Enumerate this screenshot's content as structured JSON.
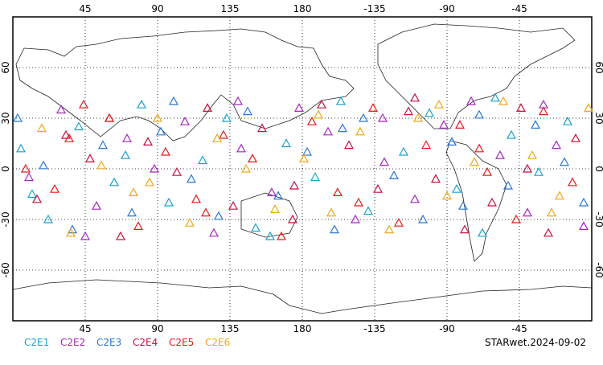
{
  "chart_data": {
    "type": "scatter",
    "xlim": [
      0,
      360
    ],
    "ylim": [
      -90,
      90
    ],
    "xticks": [
      45,
      90,
      135,
      180,
      {
        "value": 225,
        "label": "-135"
      },
      {
        "value": 270,
        "label": "-90"
      },
      {
        "value": 315,
        "label": "-45"
      }
    ],
    "yticks": [
      -60,
      -30,
      0,
      30,
      60
    ],
    "grid": true,
    "stamp": "STARwet.2024-09-02",
    "series": [
      {
        "name": "C2E1",
        "color": "#1aa3c8",
        "x": [
          5,
          22,
          41,
          63,
          80,
          97,
          118,
          133,
          151,
          170,
          188,
          204,
          221,
          243,
          259,
          276,
          292,
          310,
          327,
          345,
          12,
          70,
          160,
          300
        ],
        "y": [
          12,
          -30,
          25,
          -8,
          38,
          -20,
          5,
          30,
          -35,
          15,
          -5,
          40,
          -25,
          10,
          33,
          -12,
          -38,
          20,
          -2,
          28,
          -15,
          8,
          -40,
          42
        ]
      },
      {
        "name": "C2E2",
        "color": "#a626c0",
        "x": [
          10,
          30,
          52,
          71,
          88,
          107,
          125,
          142,
          161,
          178,
          196,
          213,
          231,
          250,
          268,
          285,
          303,
          320,
          338,
          355,
          45,
          140,
          230,
          330
        ],
        "y": [
          -5,
          35,
          -22,
          18,
          0,
          28,
          -38,
          12,
          -14,
          36,
          22,
          -30,
          4,
          -18,
          26,
          40,
          8,
          -26,
          14,
          -34,
          -40,
          40,
          30,
          38
        ]
      },
      {
        "name": "C2E3",
        "color": "#2a78d8",
        "x": [
          3,
          19,
          37,
          56,
          74,
          92,
          111,
          128,
          146,
          165,
          183,
          200,
          218,
          237,
          255,
          273,
          290,
          308,
          325,
          343,
          100,
          205,
          280,
          355
        ],
        "y": [
          30,
          2,
          -36,
          14,
          -26,
          22,
          -6,
          -28,
          34,
          -16,
          10,
          -36,
          30,
          -4,
          -30,
          16,
          32,
          -10,
          26,
          4,
          40,
          24,
          -22,
          -20
        ]
      },
      {
        "name": "C2E4",
        "color": "#c8103c",
        "x": [
          15,
          33,
          48,
          67,
          84,
          102,
          121,
          137,
          155,
          174,
          192,
          209,
          227,
          246,
          263,
          281,
          298,
          316,
          333,
          350,
          60,
          175,
          250,
          320
        ],
        "y": [
          -18,
          20,
          6,
          -40,
          16,
          -2,
          36,
          -22,
          24,
          -30,
          38,
          14,
          -12,
          34,
          -6,
          -36,
          -20,
          36,
          -38,
          18,
          30,
          -10,
          42,
          0
        ]
      },
      {
        "name": "C2E5",
        "color": "#e81a1a",
        "x": [
          8,
          26,
          44,
          60,
          78,
          95,
          114,
          131,
          149,
          167,
          186,
          202,
          224,
          240,
          257,
          278,
          295,
          313,
          330,
          348,
          35,
          120,
          215,
          290
        ],
        "y": [
          0,
          -12,
          38,
          30,
          -34,
          10,
          -18,
          20,
          6,
          -40,
          28,
          -14,
          36,
          -32,
          14,
          26,
          -2,
          -30,
          34,
          -8,
          18,
          -26,
          -20,
          12
        ]
      },
      {
        "name": "C2E6",
        "color": "#f0a818",
        "x": [
          18,
          36,
          55,
          75,
          90,
          110,
          127,
          145,
          163,
          181,
          198,
          216,
          234,
          252,
          270,
          287,
          305,
          323,
          340,
          358,
          85,
          190,
          265,
          335
        ],
        "y": [
          24,
          -38,
          2,
          -14,
          30,
          -32,
          18,
          0,
          -24,
          6,
          -26,
          22,
          -36,
          30,
          -16,
          4,
          40,
          8,
          -16,
          36,
          -8,
          32,
          38,
          -26
        ]
      }
    ]
  }
}
